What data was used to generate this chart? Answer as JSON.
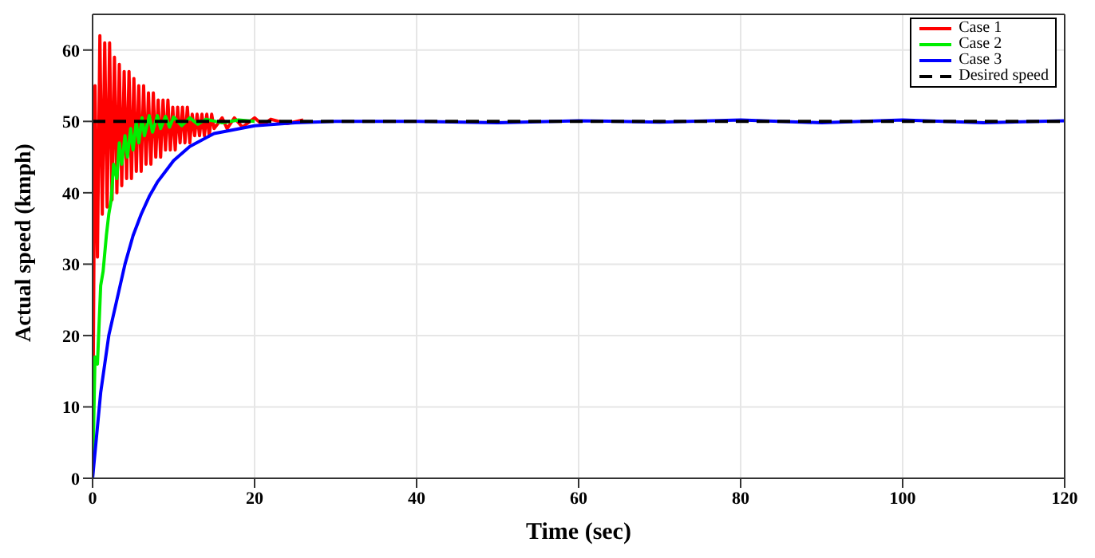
{
  "chart_data": {
    "type": "line",
    "xlabel": "Time (sec)",
    "ylabel": "Actual speed (kmph)",
    "xlim": [
      0,
      120
    ],
    "xticks": [
      0,
      20,
      40,
      60,
      80,
      100,
      120
    ],
    "ylim": [
      0,
      65
    ],
    "yticks": [
      0,
      10,
      20,
      30,
      40,
      50,
      60
    ],
    "grid": true,
    "legend": "top right",
    "marker": "none",
    "line_style": "solid",
    "series": [
      {
        "name": "Case 1",
        "color": "#ff0000",
        "x": [
          0,
          0.3,
          0.6,
          0.9,
          1.2,
          1.5,
          1.8,
          2.1,
          2.4,
          2.7,
          3.0,
          3.3,
          3.6,
          3.9,
          4.2,
          4.5,
          4.8,
          5.1,
          5.4,
          5.7,
          6.0,
          6.3,
          6.6,
          6.9,
          7.2,
          7.5,
          7.8,
          8.1,
          8.4,
          8.7,
          9.0,
          9.3,
          9.6,
          9.9,
          10.2,
          10.5,
          10.8,
          11.1,
          11.4,
          11.7,
          12.0,
          12.3,
          12.6,
          12.9,
          13.2,
          13.5,
          13.8,
          14.1,
          14.4,
          14.7,
          15.0,
          16,
          16.6,
          17.5,
          18.5,
          20,
          21,
          22,
          24,
          26
        ],
        "values": [
          0,
          55,
          31,
          62,
          37,
          61,
          38,
          61,
          39,
          59,
          40,
          58,
          41,
          57,
          42,
          57,
          42,
          56,
          43,
          55,
          43,
          55,
          44,
          54,
          44,
          54,
          45,
          53,
          45,
          53,
          46,
          53,
          46,
          52,
          46,
          52,
          47,
          52,
          47,
          52,
          47,
          51,
          48,
          51,
          48,
          51,
          48,
          51,
          48,
          51,
          49,
          50.5,
          49,
          50.5,
          49.2,
          50.5,
          49.5,
          50.3,
          49.7,
          50.2
        ]
      },
      {
        "name": "Case 2",
        "color": "#00ee00",
        "x": [
          0,
          0.3,
          0.6,
          1,
          1.3,
          1.7,
          2,
          2.3,
          2.6,
          3,
          3.3,
          3.6,
          4,
          4.3,
          4.7,
          5,
          5.4,
          5.7,
          6.1,
          6.4,
          7,
          7.4,
          8,
          8.4,
          9,
          9.5,
          10,
          11,
          12,
          13,
          14,
          16,
          18,
          20
        ],
        "values": [
          0,
          17,
          16,
          27,
          29,
          34,
          37,
          39,
          44,
          42,
          47,
          44,
          48,
          45,
          49,
          46,
          50,
          47,
          50.5,
          48,
          50.8,
          48.5,
          50.8,
          49,
          50.7,
          49.2,
          50.6,
          49.4,
          50.5,
          49.6,
          50.3,
          49.8,
          50.2,
          50
        ]
      },
      {
        "name": "Case 3",
        "color": "#0000ff",
        "x": [
          0,
          0.5,
          1,
          1.5,
          2,
          3,
          4,
          5,
          6,
          7,
          8,
          9,
          10,
          12,
          15,
          20,
          25,
          30,
          40,
          50,
          60,
          70,
          80,
          90,
          100,
          110,
          120
        ],
        "values": [
          0,
          6,
          12,
          16,
          20,
          25,
          30,
          34,
          37,
          39.5,
          41.5,
          43,
          44.5,
          46.5,
          48.3,
          49.4,
          49.8,
          50,
          50,
          49.8,
          50.1,
          49.9,
          50.2,
          49.8,
          50.2,
          49.8,
          50.1
        ]
      },
      {
        "name": "Desired speed",
        "color": "#000000",
        "line_style": "dashed",
        "x": [
          0,
          120
        ],
        "values": [
          50,
          50
        ]
      }
    ]
  }
}
